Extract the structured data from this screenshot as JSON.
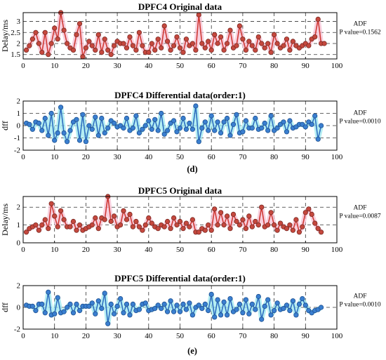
{
  "figure": {
    "labels": [
      "(d)",
      "(e)"
    ]
  },
  "chart_data": [
    {
      "type": "line",
      "title": "DPFC4  Original data",
      "ylabel": "Delay/ms",
      "xlabel": "",
      "xlim": [
        0,
        100
      ],
      "ylim": [
        1.3,
        3.4
      ],
      "xticks": [
        "0",
        "10",
        "20",
        "30",
        "40",
        "50",
        "60",
        "70",
        "80",
        "90",
        "100"
      ],
      "yticks": [
        "1.5",
        "2",
        "2.5",
        "3"
      ],
      "grid": "dashed",
      "annotation": {
        "line1": "ADF",
        "line2": "P value=0.1562"
      },
      "colors": {
        "line": "#d03a36",
        "marker": "#c5483e",
        "marker_edge": "#7a2a22",
        "band": "#f6bfd2"
      },
      "series": [
        {
          "x_start": 1,
          "values": [
            1.7,
            1.9,
            2.2,
            2.5,
            2.0,
            1.6,
            2.5,
            1.5,
            2.0,
            2.7,
            2.2,
            3.4,
            2.6,
            2.0,
            1.8,
            1.7,
            2.4,
            2.9,
            1.4,
            1.8,
            2.1,
            1.9,
            1.7,
            2.4,
            1.6,
            2.2,
            1.7,
            1.5,
            1.9,
            2.1,
            2.0,
            2.0,
            1.8,
            2.3,
            1.9,
            1.7,
            2.5,
            1.9,
            1.6,
            1.6,
            2.0,
            1.7,
            2.2,
            1.8,
            2.8,
            2.1,
            1.7,
            1.9,
            2.3,
            1.8,
            1.6,
            2.2,
            1.9,
            2.0,
            1.7,
            3.3,
            2.0,
            1.8,
            2.1,
            1.7,
            2.4,
            2.0,
            2.3,
            1.7,
            2.0,
            2.6,
            1.8,
            1.9,
            2.8,
            2.2,
            1.7,
            2.1,
            1.9,
            1.7,
            2.3,
            2.0,
            1.8,
            2.0,
            1.6,
            2.4,
            2.0,
            1.8,
            1.9,
            2.2,
            1.7,
            2.1,
            1.9,
            1.8,
            1.9,
            2.0,
            1.9,
            2.2,
            2.3,
            3.1,
            2.0,
            2.0
          ]
        }
      ]
    },
    {
      "type": "line",
      "title": "DPFC4  Differential data(order:1)",
      "ylabel": "dff",
      "xlabel": "",
      "xlim": [
        0,
        100
      ],
      "ylim": [
        -2,
        2
      ],
      "xticks": [
        "0",
        "10",
        "20",
        "30",
        "40",
        "50",
        "60",
        "70",
        "80",
        "90",
        "100"
      ],
      "yticks": [
        "-2",
        "-1",
        "0",
        "1",
        "2"
      ],
      "grid": "dashed",
      "annotation": {
        "line1": "ADF",
        "line2": "P value=0.0010"
      },
      "colors": {
        "line": "#2f6fc0",
        "marker": "#3a7fd0",
        "marker_edge": "#1f4f90",
        "band": "#9be8ef"
      },
      "series": [
        {
          "x_start": 1,
          "values": [
            0.2,
            0.1,
            -0.3,
            0.3,
            0.2,
            -0.4,
            0.6,
            -0.8,
            1.0,
            -1.2,
            -0.6,
            1.5,
            -0.6,
            -1.3,
            -0.4,
            0.3,
            0.5,
            -1.2,
            0.9,
            -1.3,
            0.0,
            -0.3,
            0.7,
            -0.8,
            0.6,
            -0.6,
            -0.2,
            0.4,
            0.2,
            -0.1,
            0.0,
            -0.2,
            0.6,
            -0.4,
            -0.2,
            0.8,
            -0.6,
            -0.3,
            0.0,
            0.4,
            -0.3,
            0.5,
            -0.4,
            1.0,
            -0.7,
            -0.4,
            0.2,
            0.4,
            -0.5,
            -0.2,
            0.6,
            -0.3,
            0.2,
            -0.3,
            1.6,
            -1.3,
            -0.2,
            0.3,
            -0.4,
            0.8,
            -0.4,
            0.3,
            -0.6,
            0.3,
            0.6,
            -0.8,
            0.1,
            0.9,
            -0.6,
            -0.5,
            0.4,
            -0.2,
            -0.2,
            0.6,
            -0.3,
            -0.2,
            0.2,
            -0.4,
            0.8,
            -0.4,
            -0.2,
            0.1,
            0.3,
            -0.5,
            0.4,
            -0.2,
            -0.1,
            0.1,
            0.1,
            -0.1,
            0.3,
            0.1,
            0.8,
            -1.1,
            0.0
          ]
        }
      ]
    },
    {
      "type": "line",
      "title": "DPFC5  Original data",
      "ylabel": "Delay/ms",
      "xlabel": "",
      "xlim": [
        0,
        100
      ],
      "ylim": [
        0,
        2.6
      ],
      "xticks": [
        "0",
        "10",
        "20",
        "30",
        "40",
        "50",
        "60",
        "70",
        "80",
        "90",
        "100"
      ],
      "yticks": [
        "0",
        "1",
        "2"
      ],
      "grid": "dashed",
      "annotation": {
        "line1": "ADF",
        "line2": "P value=0.0087"
      },
      "colors": {
        "line": "#d03a36",
        "marker": "#c5483e",
        "marker_edge": "#7a2a22",
        "band": "#f6bfd2"
      },
      "series": [
        {
          "x_start": 1,
          "values": [
            0.6,
            0.8,
            0.9,
            1.0,
            0.7,
            1.0,
            1.3,
            0.8,
            2.2,
            1.5,
            0.9,
            1.8,
            1.3,
            0.9,
            0.9,
            1.2,
            0.7,
            1.0,
            0.7,
            0.8,
            0.9,
            1.0,
            1.4,
            0.8,
            1.4,
            1.3,
            2.6,
            1.2,
            1.5,
            0.9,
            1.0,
            1.8,
            1.3,
            1.6,
            0.9,
            1.2,
            0.9,
            0.7,
            1.0,
            1.4,
            1.1,
            0.9,
            0.8,
            1.0,
            0.9,
            1.2,
            0.8,
            1.4,
            1.0,
            1.2,
            0.8,
            1.1,
            0.9,
            1.3,
            0.6,
            0.6,
            0.8,
            0.7,
            1.0,
            0.7,
            1.9,
            1.0,
            1.7,
            1.0,
            1.5,
            0.8,
            1.6,
            1.2,
            1.0,
            1.3,
            0.8,
            1.5,
            0.9,
            1.2,
            1.0,
            2.0,
            0.9,
            1.0,
            1.7,
            1.0,
            0.7,
            1.1,
            0.9,
            0.8,
            1.0,
            0.7,
            1.3,
            0.6,
            0.9,
            1.7,
            1.9,
            1.6,
            1.1,
            0.8,
            0.6
          ]
        }
      ]
    },
    {
      "type": "line",
      "title": "DPFC5  Differential data(order:1)",
      "ylabel": "dff",
      "xlabel": "",
      "xlim": [
        0,
        100
      ],
      "ylim": [
        -2,
        2
      ],
      "xticks": [
        "0",
        "10",
        "20",
        "30",
        "40",
        "50",
        "60",
        "70",
        "80",
        "90",
        "100"
      ],
      "yticks": [
        "-2",
        "0",
        "2"
      ],
      "grid": "dashed",
      "annotation": {
        "line1": "ADF",
        "line2": "P value=0.0010"
      },
      "colors": {
        "line": "#2f6fc0",
        "marker": "#3a7fd0",
        "marker_edge": "#1f4f90",
        "band": "#9be8ef"
      },
      "series": [
        {
          "x_start": 1,
          "values": [
            0.2,
            0.1,
            0.1,
            -0.3,
            0.3,
            0.3,
            -0.5,
            1.4,
            -0.7,
            -0.6,
            0.9,
            -0.5,
            -0.4,
            0.0,
            0.3,
            -0.5,
            0.3,
            -0.3,
            0.1,
            0.1,
            0.1,
            0.4,
            -0.6,
            0.6,
            -0.1,
            1.3,
            -1.5,
            0.3,
            -0.6,
            0.1,
            0.8,
            -0.5,
            0.3,
            -0.7,
            0.3,
            -0.3,
            -0.2,
            0.3,
            0.4,
            -0.3,
            -0.2,
            -0.1,
            0.2,
            -0.1,
            0.3,
            -0.4,
            0.6,
            -0.4,
            0.2,
            -0.4,
            0.3,
            -0.2,
            0.4,
            -0.7,
            0.0,
            0.2,
            -0.1,
            0.3,
            -0.3,
            1.2,
            -0.9,
            0.7,
            -0.7,
            0.5,
            -0.7,
            0.8,
            -0.4,
            -0.2,
            0.3,
            -0.5,
            0.7,
            -0.6,
            0.3,
            -0.2,
            1.0,
            -1.1,
            0.1,
            0.7,
            -0.7,
            -0.3,
            0.4,
            -0.2,
            -0.1,
            0.2,
            -0.3,
            0.6,
            -0.7,
            0.3,
            0.8,
            0.2,
            -0.3,
            -0.5,
            -0.3,
            -0.2,
            0.0
          ]
        }
      ]
    }
  ]
}
